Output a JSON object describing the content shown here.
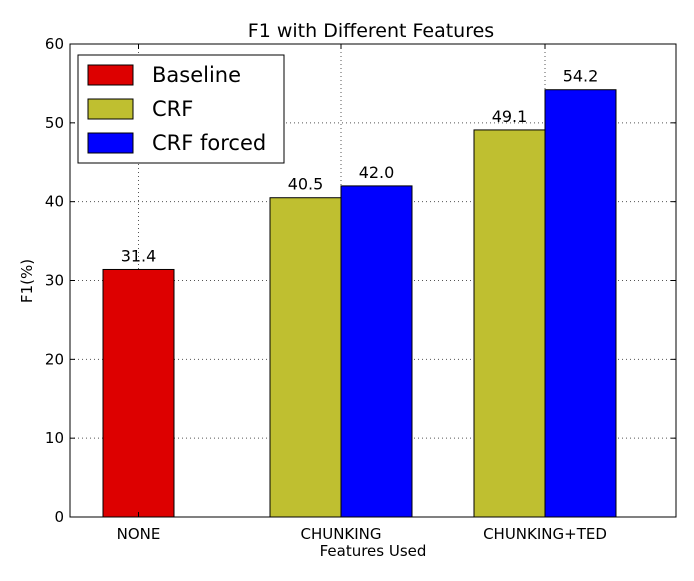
{
  "chart_data": {
    "type": "bar",
    "title": "F1 with Different Features",
    "xlabel": "Features Used",
    "ylabel": "F1(%)",
    "ylim": [
      0,
      60
    ],
    "yticks": [
      0,
      10,
      20,
      30,
      40,
      50,
      60
    ],
    "categories": [
      "NONE",
      "CHUNKING",
      "CHUNKING+TED"
    ],
    "grid": true,
    "legend_position": "top-left",
    "series": [
      {
        "name": "Baseline",
        "color": "#dd0000",
        "values": [
          31.4,
          null,
          null
        ],
        "labels": [
          "31.4",
          "",
          ""
        ]
      },
      {
        "name": "CRF",
        "color": "#bfbf30",
        "values": [
          null,
          40.5,
          49.1
        ],
        "labels": [
          "",
          "40.5",
          "49.1"
        ]
      },
      {
        "name": "CRF forced",
        "color": "#0000ff",
        "values": [
          null,
          42.0,
          54.2
        ],
        "labels": [
          "",
          "42.0",
          "54.2"
        ]
      }
    ]
  }
}
